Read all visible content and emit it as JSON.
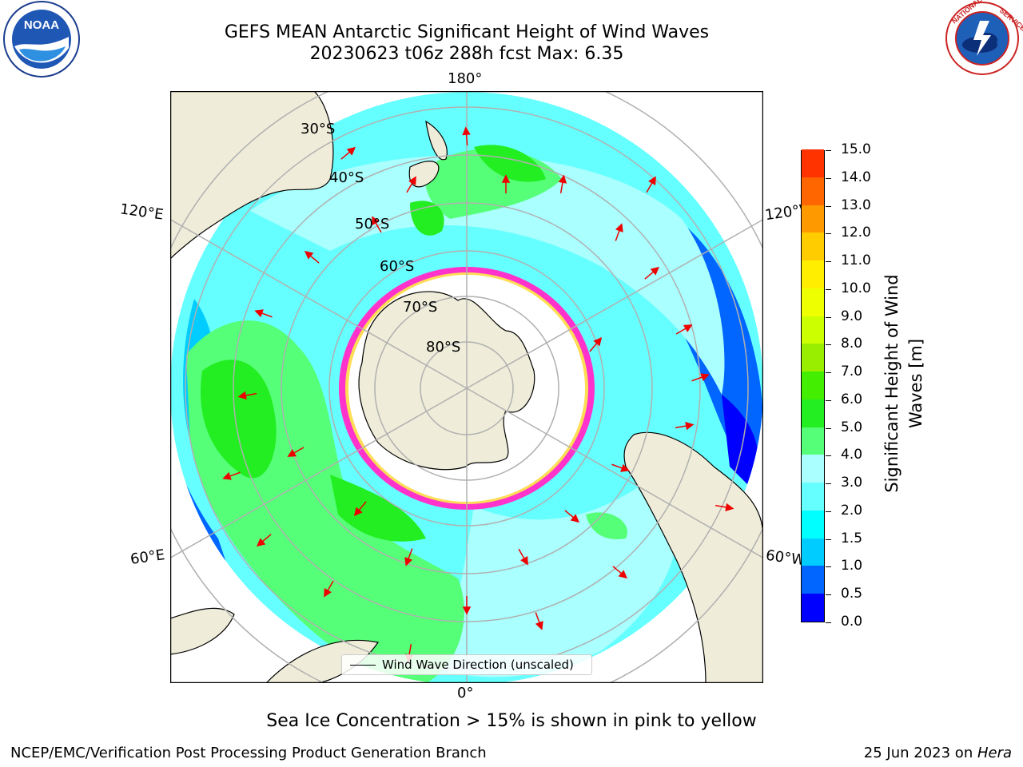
{
  "title": {
    "line1": "GEFS MEAN Antarctic Significant Height of Wind Waves",
    "line2": "20230623 t06z 288h fcst   Max: 6.35"
  },
  "logos": {
    "left": {
      "text": "NOAA",
      "ring_text": "NATIONAL OCEANIC AND ATMOSPHERIC ADMINISTRATION · U.S. DEPARTMENT OF COMMERCE"
    },
    "right": {
      "ring_text": "NATIONAL WEATHER SERVICE"
    }
  },
  "map": {
    "longitude_labels": {
      "top": "180°",
      "bottom": "0°",
      "left_upper": "120°E",
      "left_lower": "60°E",
      "right_upper": "120°W",
      "right_lower": "60°W"
    },
    "latitude_labels": [
      "30°S",
      "40°S",
      "50°S",
      "60°S",
      "70°S",
      "80°S"
    ],
    "legend": "Wind Wave Direction (unscaled)",
    "colors": {
      "land": "#efedd9",
      "ice_interior": "#ffffff",
      "ice_edge": "#ff33cc",
      "arrow": "#ff0000",
      "gridline": "#b0b0b0"
    }
  },
  "colorbar": {
    "label_line1": "Significant Height of Wind",
    "label_line2": "Waves [m]",
    "ticks": [
      "0.0",
      "0.5",
      "1.0",
      "1.5",
      "2.0",
      "3.0",
      "4.0",
      "5.0",
      "6.0",
      "7.0",
      "8.0",
      "9.0",
      "10.0",
      "11.0",
      "12.0",
      "13.0",
      "14.0",
      "15.0"
    ],
    "bin_colors": [
      "#0000ff",
      "#0066ff",
      "#00ccff",
      "#00ffff",
      "#66ffff",
      "#aaffff",
      "#55ff77",
      "#22ee22",
      "#44ee00",
      "#99ee00",
      "#ccff00",
      "#eeff00",
      "#ffee00",
      "#ffcc00",
      "#ff9900",
      "#ff6600",
      "#ff3300"
    ]
  },
  "note": "Sea Ice Concentration > 15% is shown in pink to yellow",
  "footer": {
    "left": "NCEP/EMC/Verification Post Processing Product Generation Branch",
    "right_date": "25 Jun 2023 on ",
    "right_host": "Hera"
  }
}
